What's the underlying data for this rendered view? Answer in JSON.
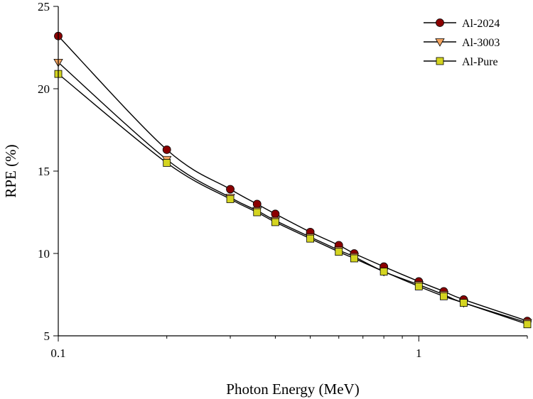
{
  "chart_data": {
    "type": "line",
    "xlabel": "Photon Energy (MeV)",
    "ylabel": "RPE (%)",
    "xscale": "log",
    "xlim": [
      0.1,
      2
    ],
    "ylim": [
      5,
      25
    ],
    "xticks": [
      0.1,
      1
    ],
    "xtick_labels": [
      "0.1",
      "1"
    ],
    "yticks": [
      5,
      10,
      15,
      20,
      25
    ],
    "ytick_labels": [
      "5",
      "10",
      "15",
      "20",
      "25"
    ],
    "grid": false,
    "legend_position": "top-right",
    "x": [
      0.1,
      0.2,
      0.3,
      0.356,
      0.4,
      0.5,
      0.6,
      0.662,
      0.8,
      1.0,
      1.173,
      1.332,
      2.0
    ],
    "series": [
      {
        "name": "Al-2024",
        "marker": "circle",
        "color": "#8B0000",
        "values": [
          23.2,
          16.3,
          13.9,
          13.0,
          12.4,
          11.3,
          10.5,
          10.0,
          9.2,
          8.3,
          7.7,
          7.2,
          5.9
        ]
      },
      {
        "name": "Al-3003",
        "marker": "triangle-down",
        "color": "#F4A460",
        "values": [
          21.6,
          15.7,
          13.4,
          12.6,
          12.0,
          11.0,
          10.2,
          9.8,
          8.9,
          8.1,
          7.5,
          7.0,
          5.8
        ]
      },
      {
        "name": "Al-Pure",
        "marker": "square",
        "color": "#D4D420",
        "values": [
          20.9,
          15.5,
          13.3,
          12.5,
          11.9,
          10.9,
          10.1,
          9.7,
          8.9,
          8.0,
          7.4,
          7.0,
          5.7
        ]
      }
    ]
  }
}
